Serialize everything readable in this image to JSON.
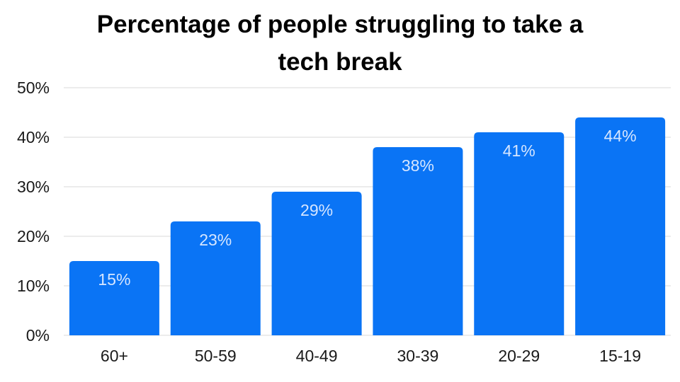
{
  "chart_data": {
    "type": "bar",
    "title": "Percentage of people struggling to take a tech break",
    "title_lines": [
      "Percentage of people struggling to take a",
      "tech break"
    ],
    "xlabel": "",
    "ylabel": "",
    "categories": [
      "60+",
      "50-59",
      "40-49",
      "30-39",
      "20-29",
      "15-19"
    ],
    "values": [
      15,
      23,
      29,
      38,
      41,
      44
    ],
    "value_labels": [
      "15%",
      "23%",
      "29%",
      "38%",
      "41%",
      "44%"
    ],
    "ylim": [
      0,
      50
    ],
    "yticks": [
      0,
      10,
      20,
      30,
      40,
      50
    ],
    "ytick_labels": [
      "0%",
      "10%",
      "20%",
      "30%",
      "40%",
      "50%"
    ],
    "grid": true,
    "bar_color": "#0a74f5",
    "value_label_color": "#d6e6ff"
  }
}
